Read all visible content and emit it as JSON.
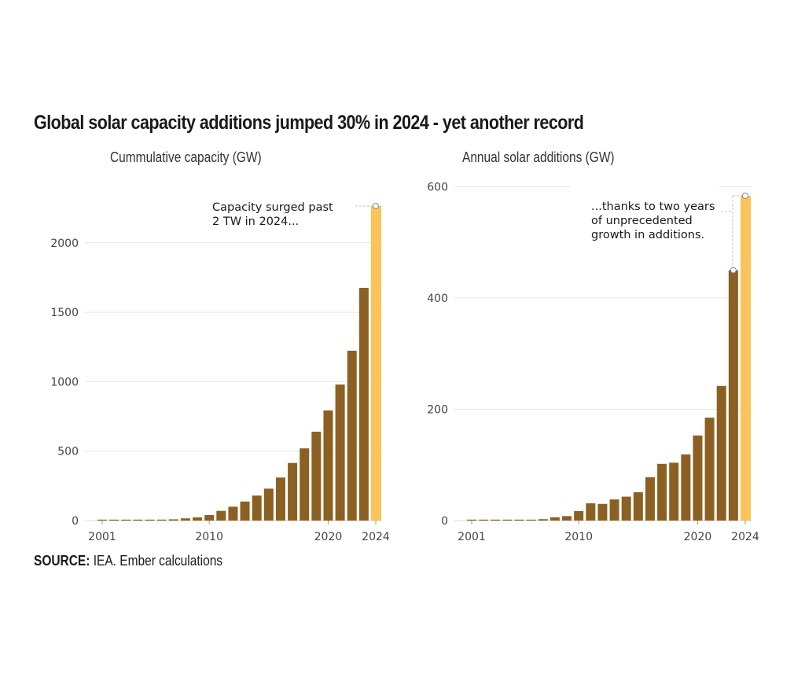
{
  "title": "Global solar capacity additions jumped 30% in 2024 - yet another record",
  "source": {
    "label": "SOURCE:",
    "text": "IEA. Ember calculations"
  },
  "colors": {
    "bar": "#8c6023",
    "highlight": "#fcc35a",
    "grid": "#e6e6e6",
    "text": "#1a1a1a"
  },
  "chart_data": [
    {
      "type": "bar",
      "title": "Cummulative capacity (GW)",
      "xlabel": "",
      "ylabel": "",
      "categories": [
        2001,
        2002,
        2003,
        2004,
        2005,
        2006,
        2007,
        2008,
        2009,
        2010,
        2011,
        2012,
        2013,
        2014,
        2015,
        2016,
        2017,
        2018,
        2019,
        2020,
        2021,
        2022,
        2023,
        2024
      ],
      "values": [
        1,
        2,
        3,
        4,
        5,
        7,
        9,
        16,
        23,
        40,
        70,
        100,
        137,
        180,
        230,
        310,
        415,
        520,
        640,
        793,
        980,
        1223,
        1676,
        2265
      ],
      "highlight_category": 2024,
      "ylim": [
        0,
        2300
      ],
      "yticks": [
        0,
        500,
        1000,
        1500,
        2000
      ],
      "xticks": [
        2001,
        2010,
        2020,
        2024
      ],
      "grid": true,
      "annotation": {
        "lines": [
          "Capacity surged past",
          "2 TW in 2024..."
        ],
        "target": 2024
      }
    },
    {
      "type": "bar",
      "title": "Annual solar additions (GW)",
      "xlabel": "",
      "ylabel": "",
      "categories": [
        2001,
        2002,
        2003,
        2004,
        2005,
        2006,
        2007,
        2008,
        2009,
        2010,
        2011,
        2012,
        2013,
        2014,
        2015,
        2016,
        2017,
        2018,
        2019,
        2020,
        2021,
        2022,
        2023,
        2024
      ],
      "values": [
        0.3,
        0.4,
        0.6,
        1.1,
        1.4,
        1.6,
        2.5,
        6,
        8,
        17,
        31,
        30,
        38,
        43,
        51,
        78,
        102,
        104,
        119,
        153,
        185,
        242,
        450,
        584
      ],
      "highlight_category": 2024,
      "ylim": [
        0,
        600
      ],
      "yticks": [
        0,
        200,
        400,
        600
      ],
      "xticks": [
        2001,
        2010,
        2020,
        2024
      ],
      "grid": true,
      "annotation": {
        "lines": [
          "...thanks to two years",
          "of unprecedented",
          "growth in additions."
        ],
        "targets": [
          2023,
          2024
        ]
      }
    }
  ]
}
